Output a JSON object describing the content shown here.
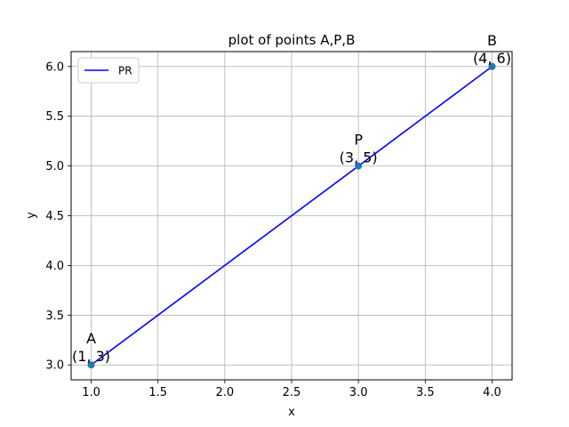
{
  "chart_data": {
    "type": "line",
    "title": "plot of points A,P,B",
    "xlabel": "x",
    "ylabel": "y",
    "xlim": [
      0.85,
      4.15
    ],
    "ylim": [
      2.85,
      6.15
    ],
    "xticks": [
      1.0,
      1.5,
      2.0,
      2.5,
      3.0,
      3.5,
      4.0
    ],
    "xtick_labels": [
      "1.0",
      "1.5",
      "2.0",
      "2.5",
      "3.0",
      "3.5",
      "4.0"
    ],
    "yticks": [
      3.0,
      3.5,
      4.0,
      4.5,
      5.0,
      5.5,
      6.0
    ],
    "ytick_labels": [
      "3.0",
      "3.5",
      "4.0",
      "4.5",
      "5.0",
      "5.5",
      "6.0"
    ],
    "grid": true,
    "legend_position": "top-left",
    "series": [
      {
        "name": "PR",
        "color": "#0000ff",
        "x": [
          1,
          4
        ],
        "y": [
          3,
          6
        ]
      }
    ],
    "points": [
      {
        "name": "A",
        "coord_text": "(1, 3)",
        "x": 1,
        "y": 3
      },
      {
        "name": "P",
        "coord_text": "(3, 5)",
        "x": 3,
        "y": 5
      },
      {
        "name": "B",
        "coord_text": "(4, 6)",
        "x": 4,
        "y": 6
      }
    ],
    "point_color": "#1f77b4"
  }
}
